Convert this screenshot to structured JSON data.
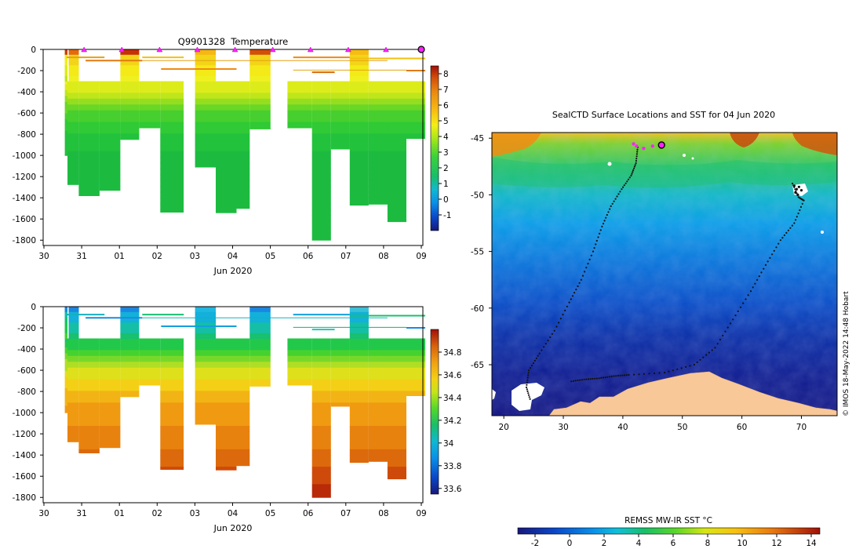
{
  "chart_data": [
    {
      "type": "heatmap",
      "title": "Q9901328  Temperature",
      "xlabel": "Jun 2020",
      "ylabel": "",
      "x_ticks": [
        "30",
        "31",
        "01",
        "02",
        "03",
        "04",
        "05",
        "06",
        "07",
        "08",
        "09"
      ],
      "x_range_days": [
        0,
        10
      ],
      "ylim": [
        -1850,
        0
      ],
      "y_ticks": [
        0,
        -200,
        -400,
        -600,
        -800,
        -1000,
        -1200,
        -1400,
        -1600,
        -1800
      ],
      "colorbar": {
        "min": -2,
        "max": 8.5,
        "ticks": [
          -1,
          0,
          1,
          2,
          3,
          4,
          5,
          6,
          7,
          8
        ]
      },
      "profiles": [
        {
          "t0": 0.45,
          "t1": 0.52,
          "depth": 1000
        },
        {
          "t0": 0.52,
          "t1": 0.82,
          "depth": 1275
        },
        {
          "t0": 0.82,
          "t1": 1.37,
          "depth": 1380
        },
        {
          "t0": 1.37,
          "t1": 1.92,
          "depth": 1330
        },
        {
          "t0": 1.92,
          "t1": 2.42,
          "depth": 850
        },
        {
          "t0": 2.42,
          "t1": 2.98,
          "depth": 740
        },
        {
          "t0": 2.98,
          "t1": 3.6,
          "depth": 1535
        },
        {
          "t0": 3.9,
          "t1": 4.45,
          "depth": 1110
        },
        {
          "t0": 4.45,
          "t1": 5.0,
          "depth": 1540
        },
        {
          "t0": 5.0,
          "t1": 5.35,
          "depth": 1500
        },
        {
          "t0": 5.35,
          "t1": 5.9,
          "depth": 750
        },
        {
          "t0": 6.35,
          "t1": 7.0,
          "depth": 740
        },
        {
          "t0": 7.0,
          "t1": 7.5,
          "depth": 1800
        },
        {
          "t0": 7.5,
          "t1": 8.0,
          "depth": 940
        },
        {
          "t0": 8.0,
          "t1": 8.5,
          "depth": 1470
        },
        {
          "t0": 8.5,
          "t1": 9.0,
          "depth": 1460
        },
        {
          "t0": 9.0,
          "t1": 9.5,
          "depth": 1625
        },
        {
          "t0": 9.5,
          "t1": 10.0,
          "depth": 840
        }
      ],
      "surface_markers_days": [
        1,
        2,
        3,
        4,
        5,
        6,
        7,
        8,
        9,
        10
      ]
    },
    {
      "type": "heatmap",
      "title": "",
      "xlabel": "Jun 2020",
      "ylabel": "",
      "x_ticks": [
        "30",
        "31",
        "01",
        "02",
        "03",
        "04",
        "05",
        "06",
        "07",
        "08",
        "09"
      ],
      "ylim": [
        -1850,
        0
      ],
      "y_ticks": [
        0,
        -200,
        -400,
        -600,
        -800,
        -1000,
        -1200,
        -1400,
        -1600,
        -1800
      ],
      "colorbar": {
        "min": 33.55,
        "max": 35.0,
        "ticks": [
          "33.6",
          "33.8",
          "34",
          "34.2",
          "34.4",
          "34.6",
          "34.8"
        ]
      }
    },
    {
      "type": "heatmap",
      "title": "SealCTD Surface Locations and SST for 04 Jun 2020",
      "xlabel": "",
      "ylabel": "",
      "xlim": [
        18,
        76
      ],
      "ylim": [
        -69.5,
        -44.5
      ],
      "x_ticks": [
        20,
        30,
        40,
        50,
        60,
        70
      ],
      "y_ticks": [
        -45,
        -50,
        -55,
        -60,
        -65
      ],
      "colorbar_label": "REMSS MW-IR SST °C",
      "colorbar": {
        "min": -3,
        "max": 14.5,
        "ticks": [
          -2,
          0,
          2,
          4,
          6,
          8,
          10,
          12,
          14
        ]
      },
      "track_west": [
        [
          42.5,
          -45.8
        ],
        [
          42.2,
          -47.2
        ],
        [
          41.4,
          -48.3
        ],
        [
          39.8,
          -49.5
        ],
        [
          38.0,
          -51.0
        ],
        [
          36.5,
          -52.8
        ],
        [
          35.0,
          -55.0
        ],
        [
          33.0,
          -57.5
        ],
        [
          31.0,
          -59.5
        ],
        [
          28.5,
          -62.0
        ],
        [
          26.0,
          -64.0
        ],
        [
          24.2,
          -65.5
        ],
        [
          23.8,
          -67.0
        ],
        [
          24.5,
          -68.2
        ]
      ],
      "track_east": [
        [
          68.5,
          -49.0
        ],
        [
          69.5,
          -50.2
        ],
        [
          70.4,
          -50.5
        ],
        [
          68.8,
          -52.5
        ],
        [
          66.5,
          -54.0
        ],
        [
          64.0,
          -56.2
        ],
        [
          61.5,
          -58.5
        ],
        [
          58.5,
          -61.0
        ],
        [
          55.5,
          -63.5
        ],
        [
          52.0,
          -65.0
        ],
        [
          47.0,
          -65.7
        ],
        [
          41.0,
          -65.9
        ],
        [
          38.5,
          -66.0
        ],
        [
          36.0,
          -66.2
        ],
        [
          33.5,
          -66.3
        ],
        [
          31.0,
          -66.5
        ]
      ],
      "magenta_points": [
        [
          41.8,
          -45.5
        ],
        [
          42.3,
          -45.7
        ],
        [
          43.5,
          -45.9
        ],
        [
          45.0,
          -45.7
        ],
        [
          46.5,
          -45.6
        ]
      ],
      "highlight_point": [
        46.5,
        -45.6
      ]
    }
  ],
  "credit": "© IMOS 18-May-2022 14:48 Hobart"
}
